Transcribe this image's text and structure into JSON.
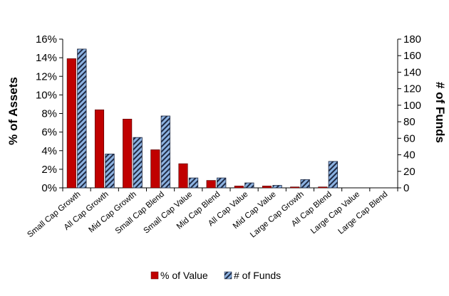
{
  "chart_data": {
    "type": "bar",
    "categories": [
      "Small Cap Growth",
      "All Cap Growth",
      "Mid Cap Growth",
      "Small Cap Blend",
      "Small Cap Value",
      "Mid Cap Blend",
      "All Cap Value",
      "Mid Cap Value",
      "Large Cap Growth",
      "All Cap Blend",
      "Large Cap Value",
      "Large Cap Blend"
    ],
    "series": [
      {
        "name": "% of Value",
        "axis": "left",
        "color": "#c00000",
        "values": [
          13.9,
          8.4,
          7.4,
          4.1,
          2.6,
          0.8,
          0.2,
          0.2,
          0.1,
          0.1,
          0.0,
          0.0
        ]
      },
      {
        "name": "# of Funds",
        "axis": "right",
        "color": "#8db3e2",
        "pattern": "diagonal-stripes",
        "values": [
          168,
          41,
          61,
          87,
          12,
          12,
          6,
          3,
          10,
          32,
          0,
          0
        ]
      }
    ],
    "ylabel": "% of Assets",
    "y2label": "# of Funds",
    "ylim": [
      0,
      16
    ],
    "y2lim": [
      0,
      180
    ],
    "yticks": [
      "0%",
      "2%",
      "4%",
      "6%",
      "8%",
      "10%",
      "12%",
      "14%",
      "16%"
    ],
    "y2ticks": [
      "0",
      "20",
      "40",
      "60",
      "80",
      "100",
      "120",
      "140",
      "160",
      "180"
    ],
    "legend_position": "bottom",
    "grid": false
  }
}
